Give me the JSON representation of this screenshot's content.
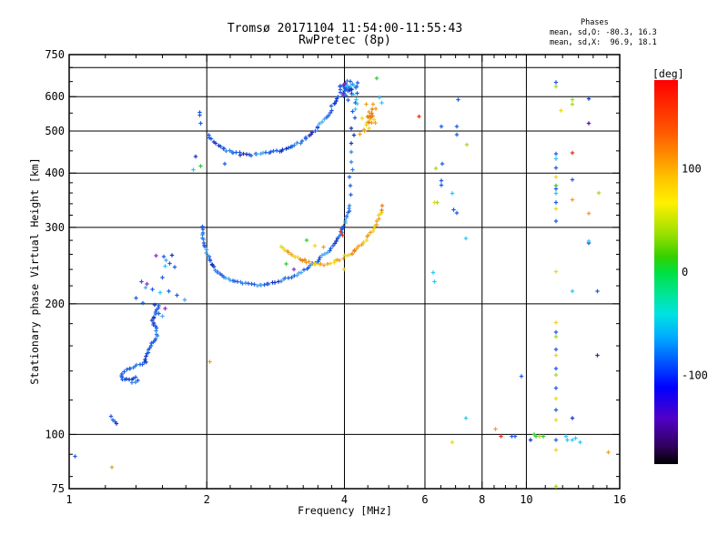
{
  "header": {
    "phases": {
      "heading": "Phases",
      "line_o": "mean, sd,O: -80.3, 16.3",
      "line_x": "mean, sd,X:  96.9, 18.1"
    }
  },
  "chart_data": {
    "type": "scatter",
    "title": "Tromsø 20171104 11:54:00-11:55:43",
    "subtitle": "RwPretec (8p)",
    "xlabel": "Frequency [MHz]",
    "ylabel": "Stationary phase Virtual Height [km]",
    "x_scale": "log",
    "y_scale": "log",
    "xlim": [
      1,
      16
    ],
    "ylim": [
      75,
      750
    ],
    "x_major_ticks": [
      1,
      2,
      4,
      6,
      8,
      10,
      16
    ],
    "x_minor_ticks": [
      1.2,
      1.4,
      1.6,
      1.8,
      2.25,
      2.5,
      2.75,
      3,
      3.25,
      3.5,
      3.75,
      4.5,
      5,
      5.5,
      6.5,
      7,
      7.5,
      8.5,
      9,
      9.5,
      11,
      12,
      13,
      14,
      15
    ],
    "x_gridlines": [
      2,
      4,
      6,
      8,
      10
    ],
    "y_major_ticks": [
      75,
      100,
      200,
      300,
      400,
      500,
      600,
      750
    ],
    "y_minor_ticks": [
      80,
      90,
      120,
      140,
      160,
      180,
      220,
      240,
      260,
      280,
      320,
      340,
      360,
      380,
      450,
      550,
      650,
      700
    ],
    "y_gridlines": [
      100,
      200,
      300,
      400,
      500,
      600,
      700
    ],
    "grid": true,
    "legend": false,
    "colorbar": {
      "label": "[deg]",
      "label_color": "#c80000",
      "ticks": [
        100,
        0,
        -100
      ],
      "vmin": -186,
      "vmax": 186,
      "stops": [
        [
          0.0,
          "#ff0000"
        ],
        [
          0.13,
          "#ff5500"
        ],
        [
          0.2,
          "#ff9100"
        ],
        [
          0.26,
          "#ffc800"
        ],
        [
          0.32,
          "#fff000"
        ],
        [
          0.4,
          "#9be000"
        ],
        [
          0.46,
          "#35d000"
        ],
        [
          0.5,
          "#00e040"
        ],
        [
          0.56,
          "#00e59a"
        ],
        [
          0.61,
          "#00e2e2"
        ],
        [
          0.67,
          "#00aaff"
        ],
        [
          0.74,
          "#004eff"
        ],
        [
          0.8,
          "#0000ff"
        ],
        [
          0.88,
          "#5000c8"
        ],
        [
          0.95,
          "#320063"
        ],
        [
          1.0,
          "#000000"
        ]
      ]
    },
    "palette": {
      "b": "#1d5ce6",
      "b2": "#2f82e8",
      "lb": "#49a6f0",
      "c": "#2ec8f2",
      "db": "#1237c4",
      "nv": "#2b2bb0",
      "pu": "#8a2ad2",
      "vi": "#5a12a2",
      "g": "#35c83a",
      "yg": "#a8d828",
      "y": "#eed61e",
      "o": "#f0a01e",
      "do": "#e87e14",
      "r": "#e8301c"
    },
    "series": [
      {
        "name": "e-region-wiggle",
        "colors": [
          "b",
          "b",
          "db",
          "b",
          "b2",
          "b"
        ],
        "step": 2.6,
        "jitter": 1.0,
        "pts": [
          [
            1.57,
            198
          ],
          [
            1.52,
            183
          ],
          [
            1.55,
            175
          ],
          [
            1.56,
            168
          ],
          [
            1.51,
            160
          ],
          [
            1.48,
            153
          ],
          [
            1.47,
            147
          ],
          [
            1.44,
            145
          ],
          [
            1.38,
            143
          ],
          [
            1.32,
            140
          ],
          [
            1.3,
            137
          ],
          [
            1.31,
            134
          ],
          [
            1.35,
            134
          ],
          [
            1.4,
            135
          ],
          [
            1.41,
            133
          ],
          [
            1.36,
            131
          ]
        ]
      },
      {
        "name": "f-trace-o",
        "colors": [
          "b",
          "b2",
          "b",
          "lb",
          "b",
          "db",
          "b2",
          "b",
          "lb"
        ],
        "step": 2.8,
        "jitter": 1.0,
        "pts": [
          [
            1.95,
            300
          ],
          [
            1.96,
            288
          ],
          [
            1.97,
            277
          ],
          [
            1.99,
            266
          ],
          [
            2.02,
            256
          ],
          [
            2.05,
            247
          ],
          [
            2.09,
            240
          ],
          [
            2.14,
            234
          ],
          [
            2.2,
            229
          ],
          [
            2.28,
            226
          ],
          [
            2.37,
            224
          ],
          [
            2.47,
            222
          ],
          [
            2.58,
            221
          ],
          [
            2.7,
            222
          ],
          [
            2.82,
            224
          ],
          [
            2.94,
            227
          ],
          [
            3.06,
            231
          ],
          [
            3.18,
            235
          ],
          [
            3.3,
            241
          ],
          [
            3.42,
            247
          ],
          [
            3.55,
            255
          ],
          [
            3.67,
            263
          ],
          [
            3.78,
            272
          ],
          [
            3.87,
            282
          ],
          [
            3.94,
            292
          ],
          [
            4.0,
            303
          ],
          [
            4.05,
            315
          ],
          [
            4.08,
            328
          ],
          [
            4.11,
            343
          ]
        ]
      },
      {
        "name": "f-trace-o-asymptote",
        "colors": [
          "b",
          "b2",
          "db",
          "b",
          "c",
          "b"
        ],
        "step": 7,
        "jitter": 1.6,
        "pts": [
          [
            4.13,
            355
          ],
          [
            4.15,
            372
          ],
          [
            4.13,
            390
          ],
          [
            4.16,
            408
          ],
          [
            4.14,
            427
          ],
          [
            4.17,
            447
          ],
          [
            4.15,
            467
          ],
          [
            4.18,
            489
          ],
          [
            4.16,
            511
          ],
          [
            4.19,
            534
          ],
          [
            4.17,
            558
          ],
          [
            4.2,
            583
          ],
          [
            4.18,
            609
          ],
          [
            4.21,
            636
          ],
          [
            4.2,
            660
          ]
        ]
      },
      {
        "name": "f-trace-x",
        "colors": [
          "y",
          "o",
          "y",
          "do",
          "o",
          "y",
          "o"
        ],
        "step": 3,
        "jitter": 1.2,
        "pts": [
          [
            2.9,
            271
          ],
          [
            2.99,
            265
          ],
          [
            3.09,
            259
          ],
          [
            3.2,
            254
          ],
          [
            3.31,
            250
          ],
          [
            3.43,
            248
          ],
          [
            3.55,
            246
          ],
          [
            3.67,
            247
          ],
          [
            3.79,
            249
          ],
          [
            3.91,
            253
          ],
          [
            4.03,
            257
          ],
          [
            4.15,
            262
          ],
          [
            4.27,
            268
          ],
          [
            4.39,
            276
          ],
          [
            4.5,
            284
          ],
          [
            4.6,
            294
          ],
          [
            4.69,
            305
          ],
          [
            4.77,
            318
          ],
          [
            4.83,
            330
          ],
          [
            4.88,
            340
          ]
        ]
      },
      {
        "name": "second-hop-o",
        "colors": [
          "b",
          "db",
          "b",
          "b2",
          "b",
          "nv",
          "b",
          "lb",
          "b"
        ],
        "step": 3,
        "jitter": 1.4,
        "pts": [
          [
            2.02,
            490
          ],
          [
            2.05,
            478
          ],
          [
            2.09,
            467
          ],
          [
            2.14,
            458
          ],
          [
            2.21,
            451
          ],
          [
            2.29,
            446
          ],
          [
            2.38,
            443
          ],
          [
            2.48,
            442
          ],
          [
            2.58,
            442
          ],
          [
            2.69,
            444
          ],
          [
            2.8,
            447
          ],
          [
            2.91,
            451
          ],
          [
            3.02,
            457
          ],
          [
            3.13,
            465
          ],
          [
            3.24,
            475
          ],
          [
            3.35,
            488
          ],
          [
            3.45,
            503
          ],
          [
            3.55,
            520
          ],
          [
            3.64,
            539
          ],
          [
            3.73,
            560
          ],
          [
            3.81,
            582
          ],
          [
            3.88,
            603
          ],
          [
            3.94,
            621
          ],
          [
            4.0,
            635
          ]
        ]
      },
      {
        "name": "second-hop-dotted",
        "colors": [
          "c",
          "b",
          "c",
          "lb",
          "b"
        ],
        "step": 6,
        "jitter": 1.0,
        "pts": [
          [
            4.24,
            560
          ],
          [
            4.26,
            577
          ],
          [
            4.24,
            594
          ],
          [
            4.27,
            612
          ],
          [
            4.25,
            630
          ],
          [
            4.27,
            648
          ],
          [
            4.26,
            665
          ]
        ]
      },
      {
        "name": "second-hop-x-cusp",
        "colors": [
          "o",
          "y",
          "do",
          "o",
          "y"
        ],
        "step": 3.5,
        "jitter": 2.2,
        "pts": [
          [
            4.35,
            492
          ],
          [
            4.42,
            507
          ],
          [
            4.48,
            521
          ],
          [
            4.54,
            536
          ],
          [
            4.6,
            550
          ],
          [
            4.65,
            562
          ],
          [
            4.69,
            572
          ]
        ]
      }
    ],
    "clusters": [
      {
        "name": "f2-cusp-cluster",
        "center": [
          4.07,
          630
        ],
        "spread": [
          10,
          16
        ],
        "count": 30,
        "colors": [
          "b",
          "db",
          "b2",
          "b",
          "pu",
          "b",
          "nv",
          "c",
          "b",
          "b2"
        ]
      },
      {
        "name": "x-cusp-cluster",
        "center": [
          4.53,
          540
        ],
        "spread": [
          9,
          17
        ],
        "count": 16,
        "colors": [
          "o",
          "y",
          "do",
          "o"
        ]
      }
    ],
    "points": [
      [
        1.61,
        257,
        "b"
      ],
      [
        1.63,
        252,
        "lb"
      ],
      [
        1.66,
        248,
        "b"
      ],
      [
        1.62,
        244,
        "c"
      ],
      [
        1.68,
        259,
        "db"
      ],
      [
        1.7,
        243,
        "b"
      ],
      [
        1.6,
        230,
        "b"
      ],
      [
        1.44,
        225,
        "b"
      ],
      [
        1.47,
        218,
        "lb"
      ],
      [
        1.52,
        216,
        "b"
      ],
      [
        1.58,
        212,
        "c"
      ],
      [
        1.65,
        214,
        "b"
      ],
      [
        1.72,
        209,
        "b"
      ],
      [
        1.79,
        204,
        "lb"
      ],
      [
        1.4,
        206,
        "b"
      ],
      [
        1.45,
        201,
        "b"
      ],
      [
        1.54,
        199,
        "db"
      ],
      [
        1.55,
        258,
        "pu"
      ],
      [
        1.48,
        222,
        "pu"
      ],
      [
        1.62,
        195,
        "pu"
      ],
      [
        1.57,
        190,
        "b"
      ],
      [
        1.6,
        187,
        "lb"
      ],
      [
        1.93,
        552,
        "b"
      ],
      [
        1.93,
        544,
        "b"
      ],
      [
        1.94,
        521,
        "b"
      ],
      [
        1.89,
        437,
        "db"
      ],
      [
        1.87,
        407,
        "c"
      ],
      [
        1.94,
        415,
        "g"
      ],
      [
        2.19,
        420,
        "b"
      ],
      [
        2.03,
        147,
        "o"
      ],
      [
        3.31,
        280,
        "g"
      ],
      [
        3.93,
        293,
        "r"
      ],
      [
        3.96,
        288,
        "r"
      ],
      [
        3.6,
        270,
        "o"
      ],
      [
        3.45,
        272,
        "y"
      ],
      [
        2.98,
        247,
        "g"
      ],
      [
        3.1,
        240,
        "pu"
      ],
      [
        3.99,
        240,
        "y"
      ],
      [
        4.77,
        598,
        "c"
      ],
      [
        4.83,
        581,
        "c"
      ],
      [
        4.71,
        662,
        "g"
      ],
      [
        5.82,
        540,
        "r"
      ],
      [
        7.1,
        590,
        "b"
      ],
      [
        6.52,
        512,
        "b"
      ],
      [
        7.04,
        512,
        "b"
      ],
      [
        7.04,
        490,
        "b"
      ],
      [
        7.41,
        465,
        "yg"
      ],
      [
        6.55,
        420,
        "b"
      ],
      [
        6.34,
        410,
        "yg"
      ],
      [
        6.52,
        384,
        "b"
      ],
      [
        6.52,
        375,
        "b"
      ],
      [
        6.89,
        359,
        "c"
      ],
      [
        6.38,
        342,
        "yg"
      ],
      [
        6.93,
        329,
        "b"
      ],
      [
        7.04,
        324,
        "b"
      ],
      [
        7.38,
        283,
        "c"
      ],
      [
        6.29,
        342,
        "y"
      ],
      [
        6.25,
        236,
        "c"
      ],
      [
        6.29,
        225,
        "c"
      ],
      [
        6.89,
        96,
        "y"
      ],
      [
        7.38,
        109,
        "c"
      ],
      [
        8.56,
        103,
        "o"
      ],
      [
        8.8,
        99,
        "r"
      ],
      [
        9.3,
        99,
        "b"
      ],
      [
        9.45,
        99,
        "b"
      ],
      [
        9.75,
        136,
        "b"
      ],
      [
        11.6,
        647,
        "b"
      ],
      [
        11.6,
        634,
        "yg"
      ],
      [
        11.9,
        557,
        "y"
      ],
      [
        11.6,
        443,
        "b"
      ],
      [
        11.6,
        432,
        "c"
      ],
      [
        11.6,
        411,
        "b"
      ],
      [
        11.6,
        392,
        "y"
      ],
      [
        11.6,
        374,
        "g"
      ],
      [
        11.6,
        368,
        "b"
      ],
      [
        11.6,
        359,
        "c"
      ],
      [
        11.6,
        342,
        "b"
      ],
      [
        11.6,
        331,
        "y"
      ],
      [
        11.6,
        310,
        "b"
      ],
      [
        11.6,
        237,
        "y"
      ],
      [
        11.6,
        181,
        "y"
      ],
      [
        11.6,
        172,
        "b"
      ],
      [
        11.6,
        168,
        "yg"
      ],
      [
        11.6,
        157,
        "b"
      ],
      [
        11.6,
        152,
        "y"
      ],
      [
        11.6,
        142,
        "b"
      ],
      [
        11.6,
        137,
        "yg"
      ],
      [
        11.6,
        128,
        "b"
      ],
      [
        11.6,
        121,
        "y"
      ],
      [
        11.6,
        114,
        "b"
      ],
      [
        11.6,
        108,
        "y"
      ],
      [
        11.6,
        97,
        "b"
      ],
      [
        11.6,
        92,
        "y"
      ],
      [
        11.6,
        76,
        "yg"
      ],
      [
        12.6,
        590,
        "yg"
      ],
      [
        12.6,
        576,
        "yg"
      ],
      [
        12.6,
        445,
        "r"
      ],
      [
        12.6,
        386,
        "b"
      ],
      [
        12.6,
        347,
        "o"
      ],
      [
        12.6,
        214,
        "c"
      ],
      [
        12.6,
        109,
        "db"
      ],
      [
        13.7,
        593,
        "db"
      ],
      [
        13.7,
        521,
        "vi"
      ],
      [
        13.7,
        323,
        "o"
      ],
      [
        13.7,
        279,
        "c"
      ],
      [
        13.7,
        276,
        "db"
      ],
      [
        14.4,
        360,
        "yg"
      ],
      [
        14.3,
        214,
        "b"
      ],
      [
        14.3,
        152,
        "vi"
      ],
      [
        15.1,
        91,
        "o"
      ],
      [
        10.2,
        97,
        "db"
      ],
      [
        10.4,
        100,
        "g"
      ],
      [
        10.5,
        99,
        "g"
      ],
      [
        10.7,
        99,
        "yg"
      ],
      [
        10.9,
        99,
        "g"
      ],
      [
        12.2,
        99,
        "c"
      ],
      [
        12.3,
        97,
        "c"
      ],
      [
        12.6,
        97,
        "c"
      ],
      [
        12.8,
        98,
        "c"
      ],
      [
        13.1,
        96,
        "c"
      ],
      [
        1.235,
        110,
        "b"
      ],
      [
        1.245,
        108,
        "b"
      ],
      [
        1.26,
        107,
        "b"
      ],
      [
        1.27,
        106,
        "db"
      ],
      [
        1.03,
        89,
        "b"
      ],
      [
        1.24,
        84,
        "o"
      ]
    ]
  }
}
